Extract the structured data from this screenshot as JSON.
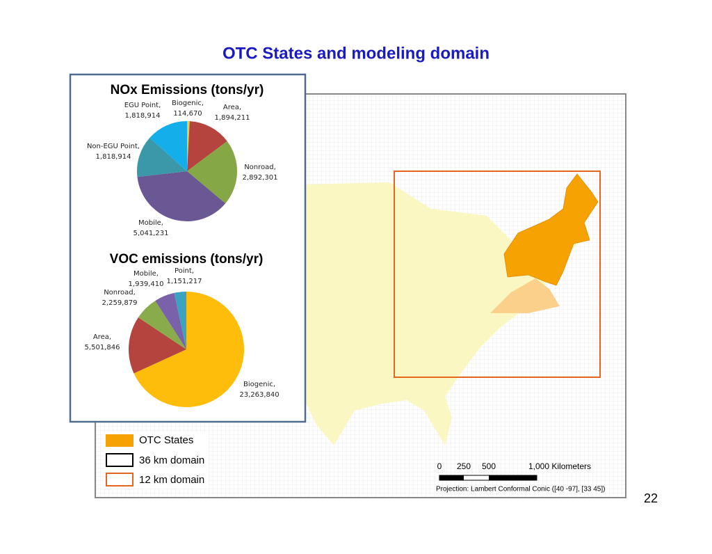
{
  "slide": {
    "title": "OTC States and modeling domain",
    "page_number": "22"
  },
  "chart_data": [
    {
      "type": "pie",
      "title": "NOx Emissions (tons/yr)",
      "categories": [
        "Biogenic,",
        "Area,",
        "Nonroad,",
        "Mobile,",
        "Non-EGU Point,",
        "EGU Point,"
      ],
      "values": [
        114670,
        1894211,
        2892301,
        5041231,
        1818914,
        1818914
      ],
      "value_labels": [
        "114,670",
        "1,894,211",
        "2,892,301",
        "5,041,231",
        "1,818,914",
        "1,818,914"
      ],
      "colors": [
        "#e8cf4a",
        "#b5443f",
        "#86a745",
        "#6a5894",
        "#3a98a8",
        "#14aeea"
      ]
    },
    {
      "type": "pie",
      "title": "VOC emissions (tons/yr)",
      "categories": [
        "Biogenic,",
        "Area,",
        "Nonroad,",
        "Mobile,",
        "Point,"
      ],
      "values": [
        23263840,
        5501846,
        2259879,
        1939410,
        1151217
      ],
      "value_labels": [
        "23,263,840",
        "5,501,846",
        "2,259,879",
        "1,939,410",
        "1,151,217"
      ],
      "colors": [
        "#fdbd0a",
        "#b5443f",
        "#8aab4b",
        "#7a62a8",
        "#3ba2c2"
      ]
    }
  ],
  "map": {
    "legend": [
      "OTC States",
      "36 km domain",
      "12 km domain"
    ],
    "scale_labels": [
      "0",
      "250",
      "500",
      "1,000 Kilometers"
    ],
    "projection": "Projection: Lambert Conformal Conic ([40 -97], [33 45])"
  }
}
